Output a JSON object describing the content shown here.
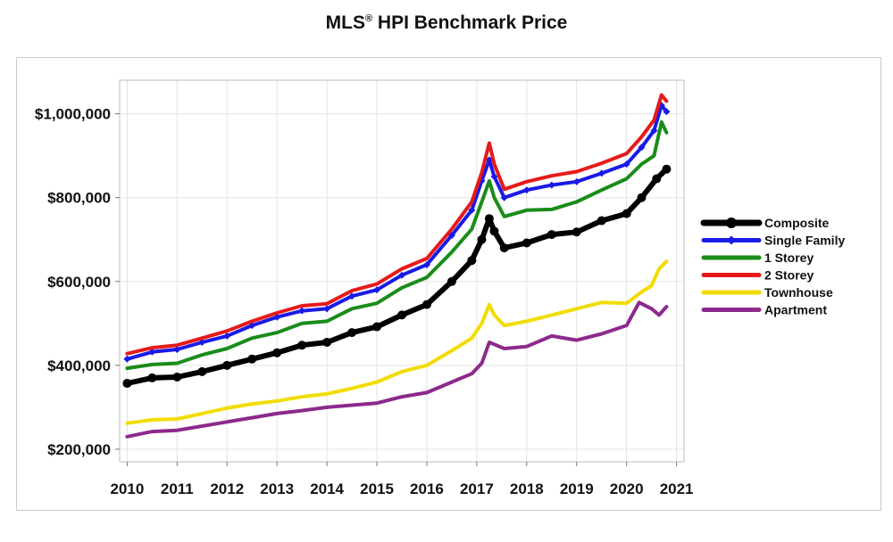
{
  "chart_data": {
    "type": "line",
    "title_main": "MLS",
    "title_sup": "®",
    "title_rest": " HPI Benchmark Price",
    "xlabel": "",
    "ylabel": "",
    "xlim": [
      2009.85,
      2021.15
    ],
    "ylim": [
      170000,
      1080000
    ],
    "grid": true,
    "legend_position": "right",
    "x_ticks": [
      {
        "value": 2010,
        "label": "2010"
      },
      {
        "value": 2011,
        "label": "2011"
      },
      {
        "value": 2012,
        "label": "2012"
      },
      {
        "value": 2013,
        "label": "2013"
      },
      {
        "value": 2014,
        "label": "2014"
      },
      {
        "value": 2015,
        "label": "2015"
      },
      {
        "value": 2016,
        "label": "2016"
      },
      {
        "value": 2017,
        "label": "2017"
      },
      {
        "value": 2018,
        "label": "2018"
      },
      {
        "value": 2019,
        "label": "2019"
      },
      {
        "value": 2020,
        "label": "2020"
      },
      {
        "value": 2021,
        "label": "2021"
      }
    ],
    "y_ticks": [
      {
        "value": 200000,
        "label": "$200,000"
      },
      {
        "value": 400000,
        "label": "$400,000"
      },
      {
        "value": 600000,
        "label": "$600,000"
      },
      {
        "value": 800000,
        "label": "$800,000"
      },
      {
        "value": 1000000,
        "label": "$1,000,000"
      }
    ],
    "series": [
      {
        "name": "Composite",
        "color": "#000000",
        "marker": "circle",
        "width": 6,
        "points": [
          [
            2010.0,
            357000
          ],
          [
            2010.5,
            370000
          ],
          [
            2011.0,
            372000
          ],
          [
            2011.5,
            385000
          ],
          [
            2012.0,
            400000
          ],
          [
            2012.5,
            415000
          ],
          [
            2013.0,
            430000
          ],
          [
            2013.5,
            448000
          ],
          [
            2014.0,
            455000
          ],
          [
            2014.5,
            478000
          ],
          [
            2015.0,
            492000
          ],
          [
            2015.5,
            520000
          ],
          [
            2016.0,
            545000
          ],
          [
            2016.5,
            600000
          ],
          [
            2016.9,
            650000
          ],
          [
            2017.1,
            700000
          ],
          [
            2017.25,
            750000
          ],
          [
            2017.35,
            720000
          ],
          [
            2017.55,
            680000
          ],
          [
            2018.0,
            692000
          ],
          [
            2018.5,
            712000
          ],
          [
            2019.0,
            718000
          ],
          [
            2019.5,
            745000
          ],
          [
            2020.0,
            762000
          ],
          [
            2020.3,
            800000
          ],
          [
            2020.6,
            845000
          ],
          [
            2020.8,
            868000
          ]
        ]
      },
      {
        "name": "Single Family",
        "color": "#1a1ae6",
        "marker": "diamond",
        "width": 4,
        "points": [
          [
            2010.0,
            415000
          ],
          [
            2010.5,
            432000
          ],
          [
            2011.0,
            438000
          ],
          [
            2011.5,
            455000
          ],
          [
            2012.0,
            470000
          ],
          [
            2012.5,
            495000
          ],
          [
            2013.0,
            515000
          ],
          [
            2013.5,
            530000
          ],
          [
            2014.0,
            535000
          ],
          [
            2014.5,
            565000
          ],
          [
            2015.0,
            580000
          ],
          [
            2015.5,
            615000
          ],
          [
            2016.0,
            640000
          ],
          [
            2016.5,
            710000
          ],
          [
            2016.9,
            770000
          ],
          [
            2017.1,
            840000
          ],
          [
            2017.25,
            890000
          ],
          [
            2017.35,
            850000
          ],
          [
            2017.55,
            800000
          ],
          [
            2018.0,
            818000
          ],
          [
            2018.5,
            830000
          ],
          [
            2019.0,
            838000
          ],
          [
            2019.5,
            858000
          ],
          [
            2020.0,
            880000
          ],
          [
            2020.3,
            920000
          ],
          [
            2020.55,
            960000
          ],
          [
            2020.7,
            1020000
          ],
          [
            2020.8,
            1005000
          ]
        ]
      },
      {
        "name": "1 Storey",
        "color": "#1a8c1a",
        "marker": "none",
        "width": 4,
        "points": [
          [
            2010.0,
            393000
          ],
          [
            2010.5,
            402000
          ],
          [
            2011.0,
            405000
          ],
          [
            2011.5,
            425000
          ],
          [
            2012.0,
            440000
          ],
          [
            2012.5,
            465000
          ],
          [
            2013.0,
            478000
          ],
          [
            2013.5,
            500000
          ],
          [
            2014.0,
            505000
          ],
          [
            2014.5,
            535000
          ],
          [
            2015.0,
            548000
          ],
          [
            2015.5,
            585000
          ],
          [
            2016.0,
            610000
          ],
          [
            2016.5,
            670000
          ],
          [
            2016.9,
            725000
          ],
          [
            2017.1,
            790000
          ],
          [
            2017.25,
            840000
          ],
          [
            2017.35,
            800000
          ],
          [
            2017.55,
            755000
          ],
          [
            2018.0,
            770000
          ],
          [
            2018.5,
            772000
          ],
          [
            2019.0,
            790000
          ],
          [
            2019.5,
            818000
          ],
          [
            2020.0,
            845000
          ],
          [
            2020.3,
            880000
          ],
          [
            2020.55,
            900000
          ],
          [
            2020.7,
            980000
          ],
          [
            2020.8,
            955000
          ]
        ]
      },
      {
        "name": "2 Storey",
        "color": "#e61a1a",
        "marker": "none",
        "width": 4,
        "points": [
          [
            2010.0,
            428000
          ],
          [
            2010.5,
            442000
          ],
          [
            2011.0,
            448000
          ],
          [
            2011.5,
            465000
          ],
          [
            2012.0,
            482000
          ],
          [
            2012.5,
            505000
          ],
          [
            2013.0,
            525000
          ],
          [
            2013.5,
            542000
          ],
          [
            2014.0,
            547000
          ],
          [
            2014.5,
            578000
          ],
          [
            2015.0,
            594000
          ],
          [
            2015.5,
            630000
          ],
          [
            2016.0,
            655000
          ],
          [
            2016.5,
            725000
          ],
          [
            2016.9,
            790000
          ],
          [
            2017.1,
            860000
          ],
          [
            2017.25,
            930000
          ],
          [
            2017.35,
            880000
          ],
          [
            2017.55,
            820000
          ],
          [
            2018.0,
            838000
          ],
          [
            2018.5,
            852000
          ],
          [
            2019.0,
            862000
          ],
          [
            2019.5,
            882000
          ],
          [
            2020.0,
            905000
          ],
          [
            2020.3,
            945000
          ],
          [
            2020.55,
            985000
          ],
          [
            2020.7,
            1045000
          ],
          [
            2020.8,
            1030000
          ]
        ]
      },
      {
        "name": "Townhouse",
        "color": "#f2dc00",
        "marker": "none",
        "width": 4,
        "points": [
          [
            2010.0,
            262000
          ],
          [
            2010.5,
            270000
          ],
          [
            2011.0,
            272000
          ],
          [
            2011.5,
            285000
          ],
          [
            2012.0,
            298000
          ],
          [
            2012.5,
            308000
          ],
          [
            2013.0,
            315000
          ],
          [
            2013.5,
            325000
          ],
          [
            2014.0,
            332000
          ],
          [
            2014.5,
            345000
          ],
          [
            2015.0,
            360000
          ],
          [
            2015.5,
            385000
          ],
          [
            2016.0,
            400000
          ],
          [
            2016.5,
            435000
          ],
          [
            2016.9,
            465000
          ],
          [
            2017.1,
            500000
          ],
          [
            2017.25,
            545000
          ],
          [
            2017.35,
            520000
          ],
          [
            2017.55,
            495000
          ],
          [
            2018.0,
            505000
          ],
          [
            2018.5,
            520000
          ],
          [
            2019.0,
            535000
          ],
          [
            2019.5,
            550000
          ],
          [
            2020.0,
            548000
          ],
          [
            2020.3,
            575000
          ],
          [
            2020.5,
            590000
          ],
          [
            2020.65,
            630000
          ],
          [
            2020.8,
            648000
          ]
        ]
      },
      {
        "name": "Apartment",
        "color": "#8c2a8c",
        "marker": "none",
        "width": 4,
        "points": [
          [
            2010.0,
            230000
          ],
          [
            2010.5,
            242000
          ],
          [
            2011.0,
            245000
          ],
          [
            2011.5,
            255000
          ],
          [
            2012.0,
            265000
          ],
          [
            2012.5,
            275000
          ],
          [
            2013.0,
            285000
          ],
          [
            2013.5,
            292000
          ],
          [
            2014.0,
            300000
          ],
          [
            2014.5,
            305000
          ],
          [
            2015.0,
            310000
          ],
          [
            2015.5,
            325000
          ],
          [
            2016.0,
            335000
          ],
          [
            2016.5,
            360000
          ],
          [
            2016.9,
            380000
          ],
          [
            2017.1,
            405000
          ],
          [
            2017.25,
            455000
          ],
          [
            2017.35,
            450000
          ],
          [
            2017.55,
            440000
          ],
          [
            2018.0,
            445000
          ],
          [
            2018.5,
            470000
          ],
          [
            2019.0,
            460000
          ],
          [
            2019.5,
            475000
          ],
          [
            2020.0,
            495000
          ],
          [
            2020.25,
            550000
          ],
          [
            2020.5,
            535000
          ],
          [
            2020.65,
            520000
          ],
          [
            2020.8,
            540000
          ]
        ]
      }
    ]
  }
}
